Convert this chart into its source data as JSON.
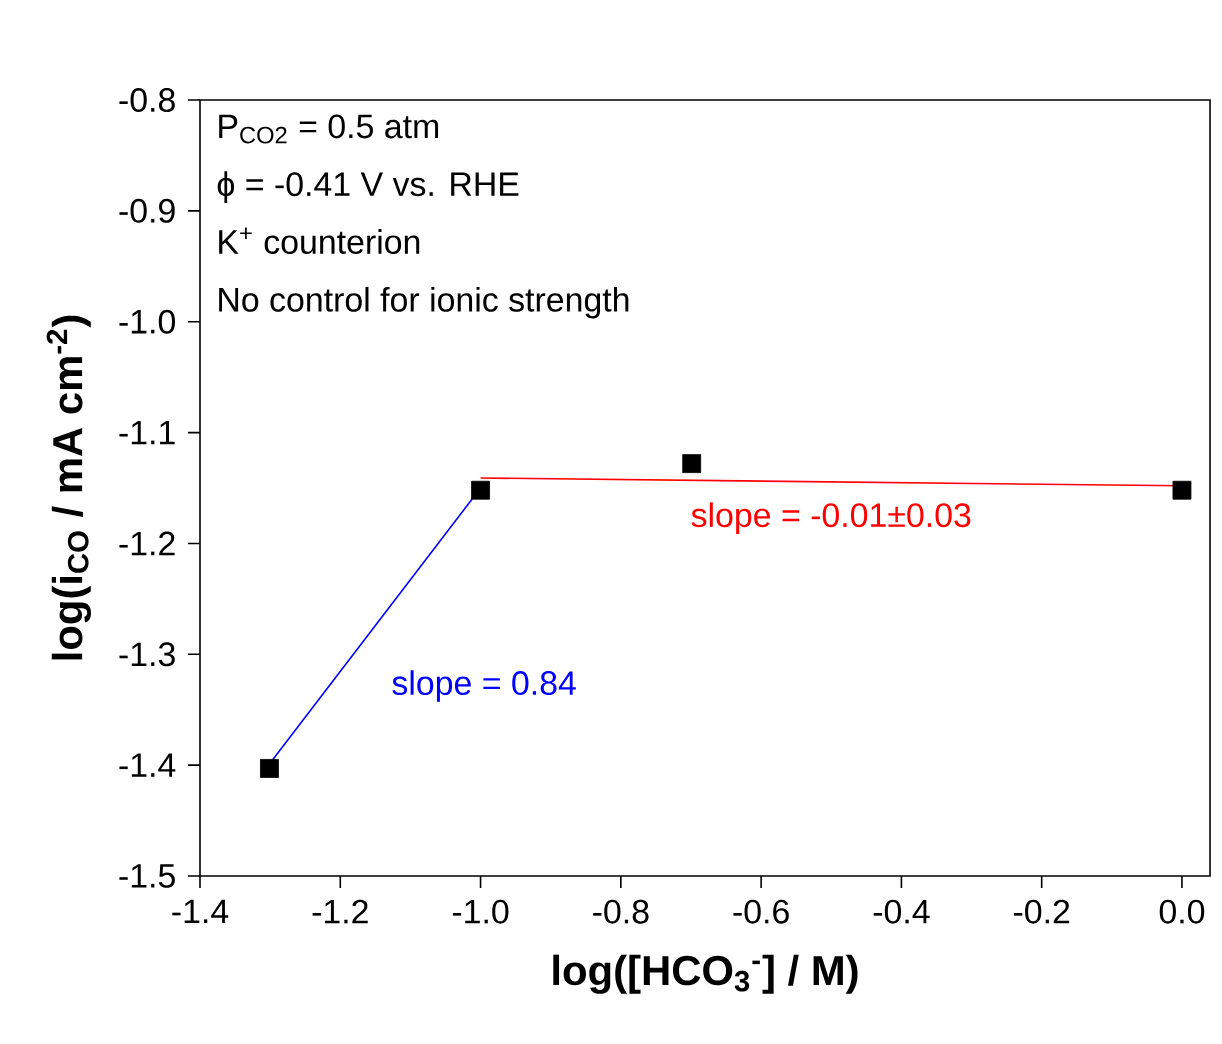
{
  "chart_data": {
    "type": "scatter",
    "xlabel": "log([HCO$_{3}$$^{-}$] / M)",
    "ylabel": "log(i$_{CO}$ / mA cm$^{-2}$)",
    "xlim": [
      -1.4,
      0.04
    ],
    "xticks": [
      {
        "value": -1.4,
        "label": "-1.4"
      },
      {
        "value": -1.2,
        "label": "-1.2"
      },
      {
        "value": -1.0,
        "label": "-1.0"
      },
      {
        "value": -0.8,
        "label": "-0.8"
      },
      {
        "value": -0.6,
        "label": "-0.6"
      },
      {
        "value": -0.4,
        "label": "-0.4"
      },
      {
        "value": -0.2,
        "label": "-0.2"
      },
      {
        "value": 0.0,
        "label": "0.0"
      }
    ],
    "ylim": [
      -1.5,
      -0.8
    ],
    "yticks": [
      {
        "value": -1.5,
        "label": "-1.5"
      },
      {
        "value": -1.4,
        "label": "-1.4"
      },
      {
        "value": -1.3,
        "label": "-1.3"
      },
      {
        "value": -1.2,
        "label": "-1.2"
      },
      {
        "value": -1.1,
        "label": "-1.1"
      },
      {
        "value": -1.0,
        "label": "-1.0"
      },
      {
        "value": -0.9,
        "label": "-0.9"
      },
      {
        "value": -0.8,
        "label": "-0.8"
      }
    ],
    "grid": false,
    "series": [
      {
        "marker": "square",
        "color": "#000000",
        "x": [
          -1.301,
          -1.0,
          -0.699,
          0.0
        ],
        "values": [
          -1.403,
          -1.152,
          -1.128,
          -1.152
        ]
      },
      {
        "type": "line",
        "color": "#0000ff",
        "x": [
          -1.301,
          -1.0
        ],
        "values": [
          -1.399,
          -1.15
        ]
      },
      {
        "type": "line",
        "color": "#ff0000",
        "x": [
          -1.0,
          0.0
        ],
        "values": [
          -1.141,
          -1.148
        ]
      }
    ],
    "annotations": [
      "P$_{CO2}$ = 0.5 atm",
      "ϕ = -0.41 V vs. RHE",
      "K$^{+}$ counterion",
      "No control for ionic strength",
      "slope = 0.84",
      "slope = -0.01±0.03"
    ]
  }
}
